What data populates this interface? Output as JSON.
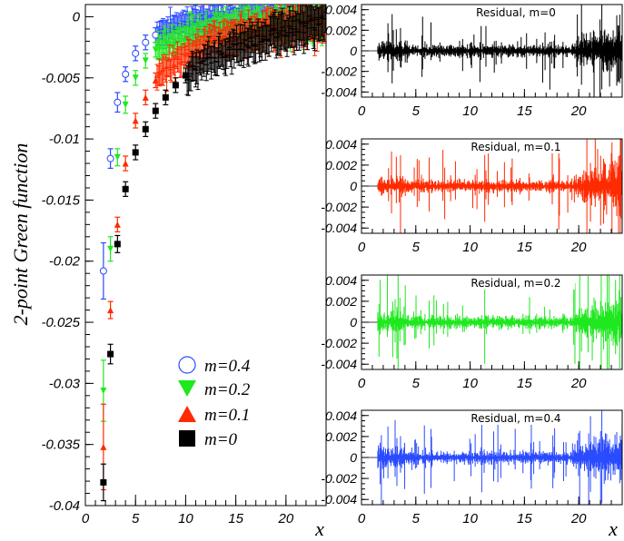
{
  "chart_data": [
    {
      "id": "main",
      "type": "scatter",
      "ylabel": "2-point Green function",
      "xlabel": "x",
      "xlim": [
        0,
        24
      ],
      "ylim": [
        -0.04,
        0.001
      ],
      "x_ticks": [
        0,
        5,
        10,
        15,
        20
      ],
      "x_tick_labels": [
        "0",
        "5",
        "10",
        "15",
        "20"
      ],
      "y_ticks": [
        0,
        -0.005,
        -0.01,
        -0.015,
        -0.02,
        -0.025,
        -0.03,
        -0.035,
        -0.04
      ],
      "y_tick_labels": [
        "0",
        "-0.005",
        "-0.01",
        "-0.015",
        "-0.02",
        "-0.025",
        "-0.03",
        "-0.035",
        "-0.04"
      ],
      "legend_position": "lower-right",
      "series": [
        {
          "name": "m=0.4",
          "color": "#2a4bff",
          "marker": "open-circle",
          "points": [
            [
              1.8,
              -0.0208,
              0.0023
            ],
            [
              2.5,
              -0.0116,
              0.0008
            ],
            [
              3.2,
              -0.007,
              0.0008
            ],
            [
              4.0,
              -0.0047,
              0.0006
            ],
            [
              5.0,
              -0.003,
              0.0006
            ],
            [
              6.0,
              -0.0021,
              0.0006
            ],
            [
              7.0,
              -0.0015,
              0.0006
            ]
          ],
          "curve": [
            [
              1.8,
              -0.0208
            ],
            [
              2.5,
              -0.0116
            ],
            [
              3.2,
              -0.007
            ],
            [
              4.0,
              -0.0047
            ],
            [
              5.0,
              -0.003
            ],
            [
              6.0,
              -0.0021
            ],
            [
              7.0,
              -0.0015
            ],
            [
              8.0,
              -0.0011
            ],
            [
              10.0,
              -0.0006
            ],
            [
              12.0,
              -0.0003
            ],
            [
              14.0,
              -0.0002
            ],
            [
              17.0,
              -0.0001
            ],
            [
              20.0,
              -5e-05
            ],
            [
              24.0,
              0.0
            ]
          ]
        },
        {
          "name": "m=0.2",
          "color": "#1ee81e",
          "marker": "triangle-down",
          "points": [
            [
              1.8,
              -0.0306,
              0.0025
            ],
            [
              2.5,
              -0.019,
              0.001
            ],
            [
              3.2,
              -0.0115,
              0.0007
            ],
            [
              4.0,
              -0.0072,
              0.0007
            ],
            [
              5.0,
              -0.005,
              0.0006
            ],
            [
              6.0,
              -0.0036,
              0.0006
            ],
            [
              7.0,
              -0.0027,
              0.0006
            ]
          ],
          "curve": [
            [
              1.8,
              -0.0306
            ],
            [
              2.5,
              -0.019
            ],
            [
              3.2,
              -0.0115
            ],
            [
              4.0,
              -0.0072
            ],
            [
              5.0,
              -0.005
            ],
            [
              6.0,
              -0.0036
            ],
            [
              7.0,
              -0.0027
            ],
            [
              8.5,
              -0.002
            ],
            [
              10.0,
              -0.0015
            ],
            [
              12.0,
              -0.0011
            ],
            [
              14.0,
              -0.0008
            ],
            [
              16.0,
              -0.0006
            ],
            [
              18.0,
              -0.0005
            ],
            [
              20.0,
              -0.0004
            ],
            [
              22.0,
              -0.0003
            ],
            [
              24.0,
              -0.0002
            ]
          ]
        },
        {
          "name": "m=0.1",
          "color": "#ff2a00",
          "marker": "triangle-up",
          "points": [
            [
              1.8,
              -0.0352,
              0.0035
            ],
            [
              2.5,
              -0.024,
              0.0007
            ],
            [
              3.2,
              -0.017,
              0.0006
            ],
            [
              4.0,
              -0.012,
              0.0006
            ],
            [
              5.0,
              -0.0085,
              0.0006
            ],
            [
              6.0,
              -0.0066,
              0.0006
            ],
            [
              7.0,
              -0.0052,
              0.0006
            ]
          ],
          "curve": [
            [
              1.8,
              -0.0352
            ],
            [
              2.5,
              -0.024
            ],
            [
              3.2,
              -0.017
            ],
            [
              4.0,
              -0.012
            ],
            [
              5.0,
              -0.0085
            ],
            [
              6.0,
              -0.0066
            ],
            [
              7.0,
              -0.0052
            ],
            [
              8.5,
              -0.004
            ],
            [
              10.0,
              -0.0031
            ],
            [
              12.0,
              -0.0023
            ],
            [
              14.0,
              -0.0018
            ],
            [
              16.0,
              -0.0014
            ],
            [
              18.0,
              -0.0011
            ],
            [
              20.0,
              -0.0009
            ],
            [
              22.0,
              -0.0007
            ],
            [
              24.0,
              -0.0005
            ]
          ]
        },
        {
          "name": "m=0",
          "color": "#000000",
          "marker": "filled-square",
          "points": [
            [
              1.8,
              -0.0381,
              0.0015
            ],
            [
              2.5,
              -0.0276,
              0.0008
            ],
            [
              3.2,
              -0.0186,
              0.0007
            ],
            [
              4.0,
              -0.0141,
              0.0006
            ],
            [
              5.0,
              -0.0111,
              0.0006
            ],
            [
              6.0,
              -0.0092,
              0.0006
            ],
            [
              7.0,
              -0.0077,
              0.0006
            ],
            [
              8.0,
              -0.0066,
              0.0006
            ],
            [
              9.0,
              -0.0056,
              0.0006
            ],
            [
              10.0,
              -0.0048,
              0.0006
            ]
          ],
          "curve": [
            [
              1.8,
              -0.0381
            ],
            [
              2.5,
              -0.0276
            ],
            [
              3.2,
              -0.0186
            ],
            [
              4.0,
              -0.0141
            ],
            [
              5.0,
              -0.0111
            ],
            [
              6.0,
              -0.0092
            ],
            [
              7.0,
              -0.0077
            ],
            [
              8.0,
              -0.0066
            ],
            [
              9.0,
              -0.0056
            ],
            [
              10.0,
              -0.0048
            ],
            [
              12.0,
              -0.0037
            ],
            [
              14.0,
              -0.0029
            ],
            [
              16.0,
              -0.0022
            ],
            [
              18.0,
              -0.0016
            ],
            [
              20.0,
              -0.0011
            ],
            [
              22.0,
              -0.0006
            ],
            [
              24.0,
              -0.0002
            ]
          ]
        }
      ]
    },
    {
      "id": "residual-m0",
      "type": "line",
      "title": "Residual, m=0",
      "color": "#000000",
      "xlim": [
        0,
        24
      ],
      "ylim": [
        -0.0045,
        0.0045
      ],
      "x_ticks": [
        0,
        5,
        10,
        15,
        20
      ],
      "x_tick_labels": [
        "0",
        "5",
        "10",
        "15",
        "20"
      ],
      "y_ticks": [
        0.004,
        0.002,
        0,
        -0.002,
        -0.004
      ],
      "y_tick_labels": [
        "0.004",
        "0.002",
        "0",
        "-0.002",
        "-0.004"
      ]
    },
    {
      "id": "residual-m01",
      "type": "line",
      "title": "Residual, m=0.1",
      "color": "#ff2a00",
      "xlim": [
        0,
        24
      ],
      "ylim": [
        -0.0045,
        0.0045
      ],
      "x_ticks": [
        0,
        5,
        10,
        15,
        20
      ],
      "x_tick_labels": [
        "0",
        "5",
        "10",
        "15",
        "20"
      ],
      "y_ticks": [
        0.004,
        0.002,
        0,
        -0.002,
        -0.004
      ],
      "y_tick_labels": [
        "0.004",
        "0.002",
        "0",
        "-0.002",
        "-0.004"
      ]
    },
    {
      "id": "residual-m02",
      "type": "line",
      "title": "Residual, m=0.2",
      "color": "#1ee81e",
      "xlim": [
        0,
        24
      ],
      "ylim": [
        -0.0045,
        0.0045
      ],
      "x_ticks": [
        0,
        5,
        10,
        15,
        20
      ],
      "x_tick_labels": [
        "0",
        "5",
        "10",
        "15",
        "20"
      ],
      "y_ticks": [
        0.004,
        0.002,
        0,
        -0.002,
        -0.004
      ],
      "y_tick_labels": [
        "0.004",
        "0.002",
        "0",
        "-0.002",
        "-0.004"
      ]
    },
    {
      "id": "residual-m04",
      "type": "line",
      "title": "Residual, m=0.4",
      "color": "#2a4bff",
      "xlabel": "x",
      "xlim": [
        0,
        24
      ],
      "ylim": [
        -0.0045,
        0.0045
      ],
      "x_ticks": [
        0,
        5,
        10,
        15,
        20
      ],
      "x_tick_labels": [
        "0",
        "5",
        "10",
        "15",
        "20"
      ],
      "y_ticks": [
        0.004,
        0.002,
        0,
        -0.002,
        -0.004
      ],
      "y_tick_labels": [
        "0.004",
        "0.002",
        "0",
        "-0.002",
        "-0.004"
      ]
    }
  ]
}
